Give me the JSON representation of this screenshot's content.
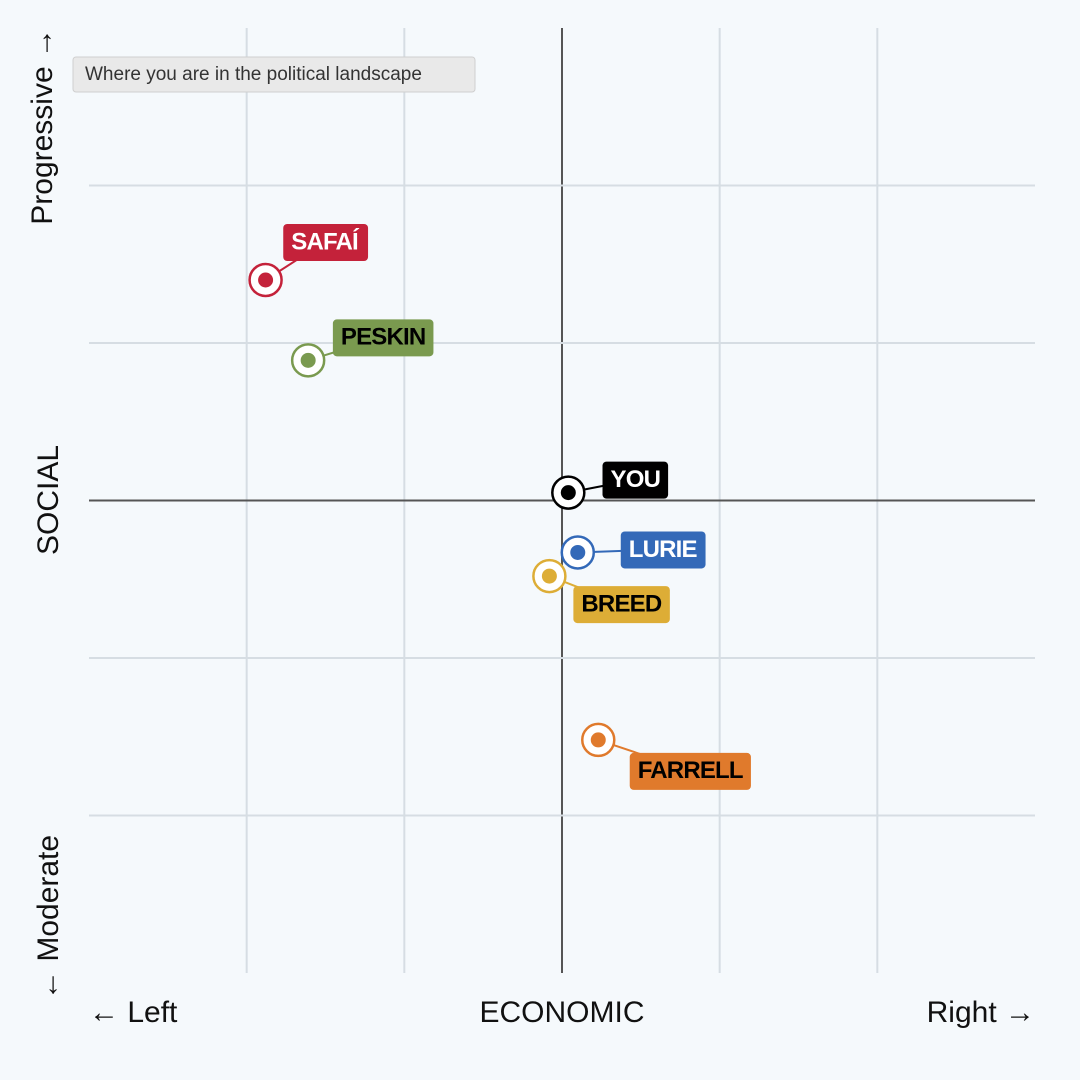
{
  "chart_data": {
    "type": "scatter",
    "tooltip": "Where you are in the political landscape",
    "xlabel": "ECONOMIC",
    "x_left_label": "← Left",
    "x_right_label": "Right →",
    "ylabel": "SOCIAL",
    "y_top_label": "Progressive →",
    "y_bottom_label": "← Moderate",
    "xlim": [
      -3,
      3
    ],
    "ylim": [
      -3,
      3
    ],
    "xticks": [
      -3,
      -2,
      -1,
      0,
      1,
      2,
      3
    ],
    "yticks": [
      -3,
      -2,
      -1,
      0,
      1,
      2,
      3
    ],
    "grid": true,
    "series": [
      {
        "name": "SAFAÍ",
        "color": "#c4223a",
        "text_color": "#ffffff",
        "x": [
          -1.88
        ],
        "values": [
          1.4
        ]
      },
      {
        "name": "PESKIN",
        "color": "#7a9a4f",
        "text_color": "#000000",
        "x": [
          -1.61
        ],
        "values": [
          0.89
        ]
      },
      {
        "name": "YOU",
        "color": "#000000",
        "text_color": "#ffffff",
        "x": [
          0.04
        ],
        "values": [
          0.05
        ]
      },
      {
        "name": "LURIE",
        "color": "#3369b8",
        "text_color": "#ffffff",
        "x": [
          0.1
        ],
        "values": [
          -0.33
        ]
      },
      {
        "name": "BREED",
        "color": "#ddad36",
        "text_color": "#000000",
        "x": [
          -0.08
        ],
        "values": [
          -0.48
        ]
      },
      {
        "name": "FARRELL",
        "color": "#e07a2c",
        "text_color": "#000000",
        "x": [
          0.23
        ],
        "values": [
          -1.52
        ]
      }
    ]
  }
}
